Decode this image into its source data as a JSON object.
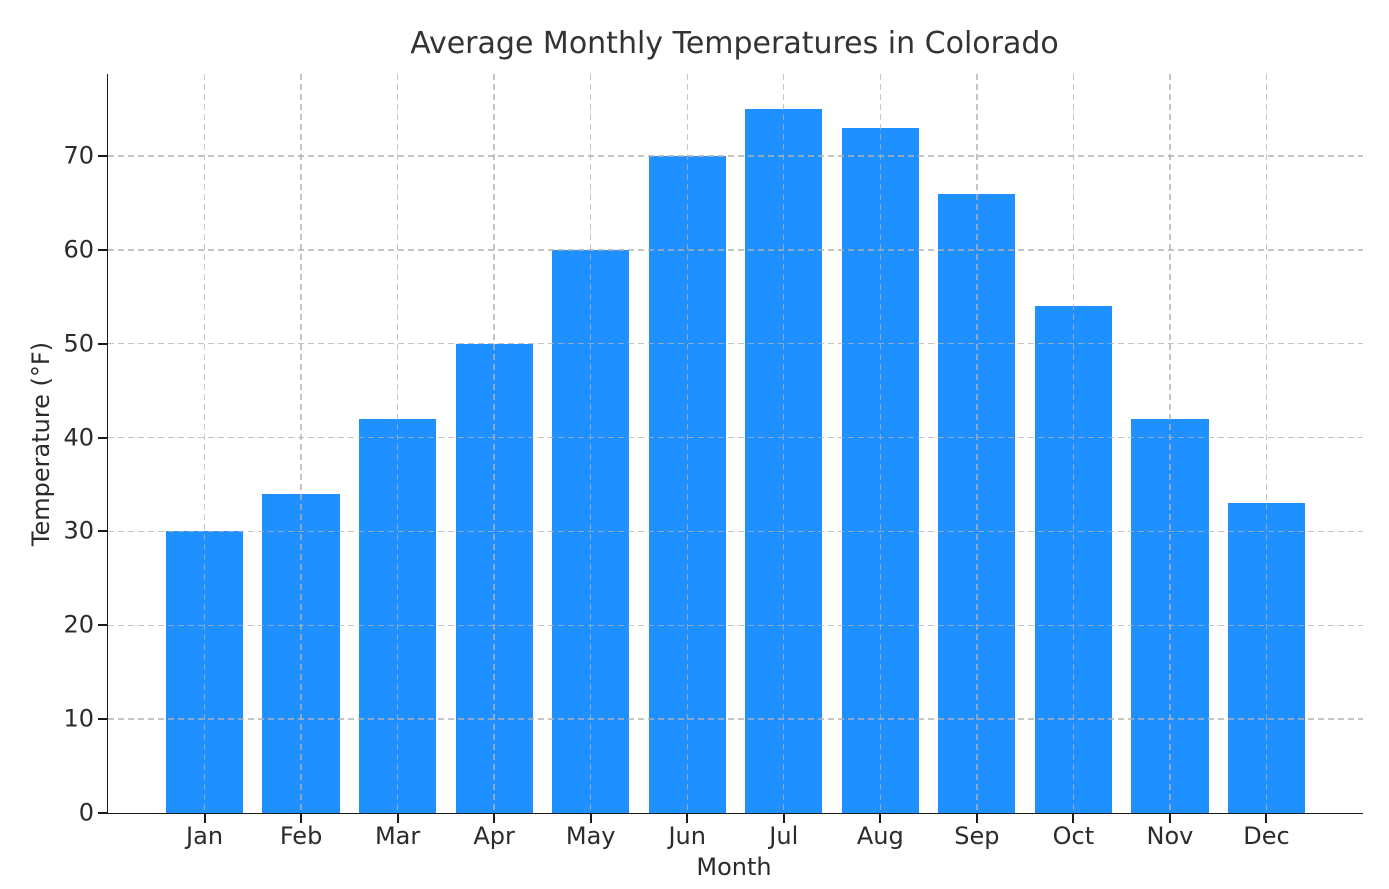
{
  "chart_data": {
    "type": "bar",
    "title": "Average Monthly Temperatures in Colorado",
    "xlabel": "Month",
    "ylabel": "Temperature (°F)",
    "categories": [
      "Jan",
      "Feb",
      "Mar",
      "Apr",
      "May",
      "Jun",
      "Jul",
      "Aug",
      "Sep",
      "Oct",
      "Nov",
      "Dec"
    ],
    "values": [
      30,
      34,
      42,
      50,
      60,
      70,
      75,
      73,
      66,
      54,
      42,
      33
    ],
    "yticks": [
      0,
      10,
      20,
      30,
      40,
      50,
      60,
      70
    ],
    "ylim": [
      0,
      78.75
    ],
    "grid": true,
    "grid_style": "dashed",
    "grid_over_bars": true,
    "bar_width_fraction": 0.8,
    "legend": "none",
    "bar_color": "#1E90FF",
    "grid_color": "#c9c9c9",
    "axis_color": "#1a1a1a",
    "text_color": "#2b2b2b",
    "background_color": "#ffffff"
  }
}
